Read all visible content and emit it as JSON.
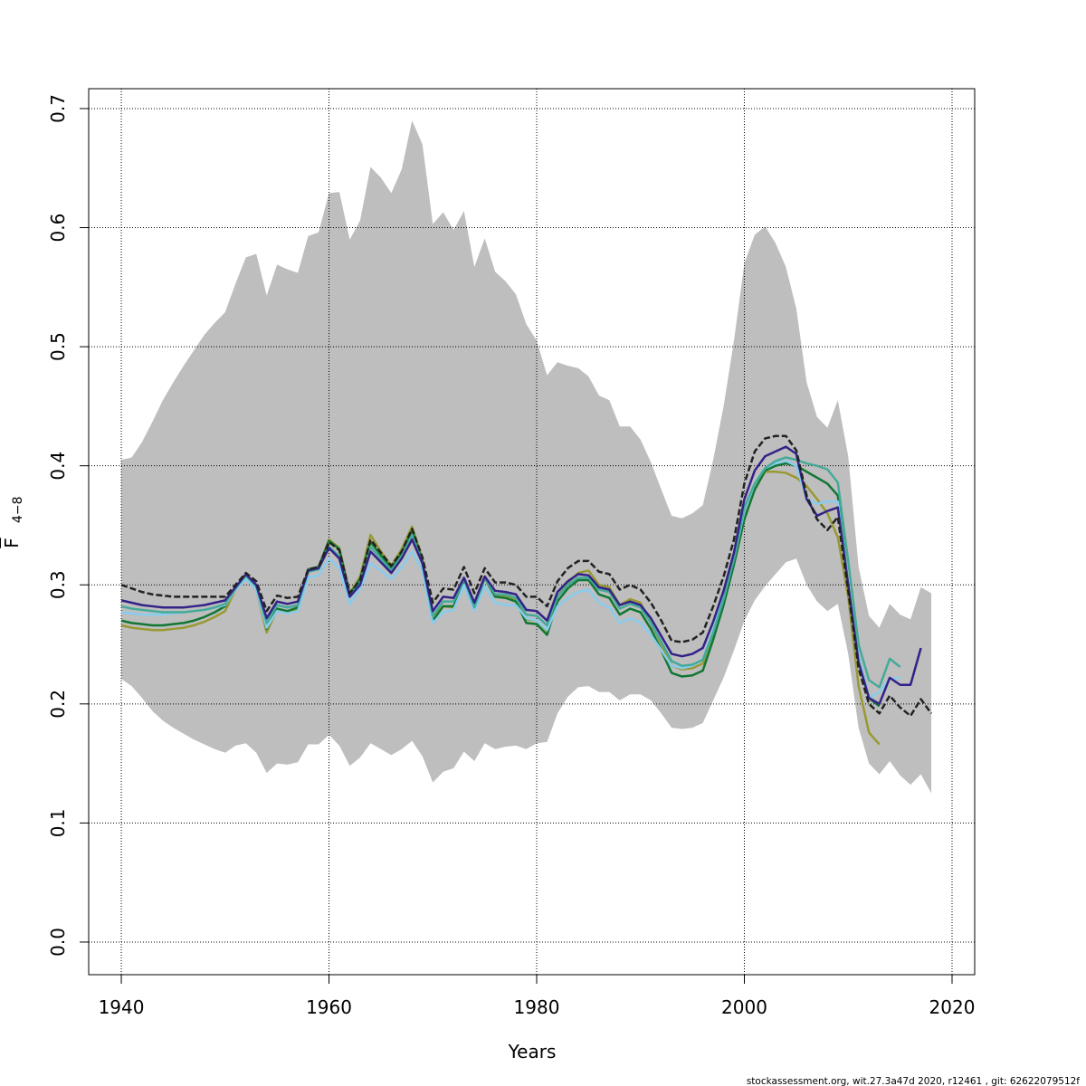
{
  "chart_data": {
    "type": "line",
    "xlabel": "Years",
    "ylabel": "F",
    "ylabel_sub": "4−8",
    "footer": "stockassessment.org, wit.27.3a47d   2020, r12461 , git: 62622079512f",
    "grid": true,
    "xlim": [
      1936.86,
      2022.18
    ],
    "ylim": [
      -0.0274,
      0.7167
    ],
    "xticks": [
      1940,
      1960,
      1980,
      2000,
      2020
    ],
    "yticks": [
      {
        "value": 0,
        "label": "0.0"
      },
      0.1,
      0.2,
      0.3,
      0.4,
      0.5,
      0.6,
      0.7
    ],
    "x": [
      1940,
      1941,
      1942,
      1943,
      1944,
      1945,
      1946,
      1947,
      1948,
      1949,
      1950,
      1951,
      1952,
      1953,
      1954,
      1955,
      1956,
      1957,
      1958,
      1959,
      1960,
      1961,
      1962,
      1963,
      1964,
      1965,
      1966,
      1967,
      1968,
      1969,
      1970,
      1971,
      1972,
      1973,
      1974,
      1975,
      1976,
      1977,
      1978,
      1979,
      1980,
      1981,
      1982,
      1983,
      1984,
      1985,
      1986,
      1987,
      1988,
      1989,
      1990,
      1991,
      1992,
      1993,
      1994,
      1995,
      1996,
      1997,
      1998,
      1999,
      2000,
      2001,
      2002,
      2003,
      2004,
      2005,
      2006,
      2007,
      2008,
      2009,
      2010,
      2011,
      2012,
      2013,
      2014,
      2015,
      2016,
      2017,
      2018
    ],
    "band": {
      "color": "#bebebe",
      "upper": [
        0.405,
        0.407,
        0.42,
        0.437,
        0.455,
        0.47,
        0.484,
        0.497,
        0.51,
        0.52,
        0.529,
        0.553,
        0.575,
        0.578,
        0.543,
        0.569,
        0.565,
        0.562,
        0.593,
        0.596,
        0.629,
        0.63,
        0.59,
        0.606,
        0.651,
        0.642,
        0.629,
        0.649,
        0.69,
        0.67,
        0.603,
        0.613,
        0.598,
        0.614,
        0.567,
        0.591,
        0.563,
        0.555,
        0.544,
        0.519,
        0.505,
        0.476,
        0.487,
        0.484,
        0.482,
        0.475,
        0.459,
        0.455,
        0.433,
        0.433,
        0.422,
        0.403,
        0.38,
        0.358,
        0.356,
        0.36,
        0.367,
        0.405,
        0.45,
        0.505,
        0.57,
        0.594,
        0.601,
        0.587,
        0.567,
        0.532,
        0.47,
        0.441,
        0.432,
        0.455,
        0.408,
        0.315,
        0.274,
        0.264,
        0.284,
        0.275,
        0.271,
        0.298,
        0.293
      ],
      "lower": [
        0.221,
        0.215,
        0.205,
        0.194,
        0.186,
        0.18,
        0.175,
        0.17,
        0.166,
        0.162,
        0.159,
        0.165,
        0.167,
        0.159,
        0.142,
        0.15,
        0.149,
        0.151,
        0.166,
        0.166,
        0.174,
        0.165,
        0.148,
        0.155,
        0.167,
        0.162,
        0.157,
        0.162,
        0.169,
        0.156,
        0.134,
        0.143,
        0.146,
        0.16,
        0.152,
        0.167,
        0.162,
        0.164,
        0.165,
        0.162,
        0.167,
        0.168,
        0.192,
        0.206,
        0.214,
        0.215,
        0.21,
        0.21,
        0.203,
        0.208,
        0.208,
        0.203,
        0.192,
        0.18,
        0.179,
        0.18,
        0.184,
        0.203,
        0.222,
        0.245,
        0.27,
        0.287,
        0.299,
        0.309,
        0.319,
        0.322,
        0.3,
        0.286,
        0.278,
        0.284,
        0.242,
        0.18,
        0.15,
        0.141,
        0.152,
        0.14,
        0.132,
        0.141,
        0.125
      ]
    },
    "series": [
      {
        "color": "#999933",
        "linestyle": "solid",
        "values": [
          0.266,
          0.264,
          0.263,
          0.262,
          0.262,
          0.263,
          0.264,
          0.266,
          0.269,
          0.273,
          0.278,
          0.296,
          0.306,
          0.296,
          0.26,
          0.279,
          0.277,
          0.279,
          0.313,
          0.315,
          0.338,
          0.331,
          0.293,
          0.307,
          0.342,
          0.328,
          0.316,
          0.33,
          0.349,
          0.322,
          0.274,
          0.282,
          0.281,
          0.305,
          0.279,
          0.307,
          0.291,
          0.29,
          0.288,
          0.271,
          0.27,
          0.261,
          0.29,
          0.302,
          0.31,
          0.312,
          0.3,
          0.298,
          0.283,
          0.288,
          0.285,
          0.268,
          0.25,
          0.232,
          0.229,
          0.23,
          0.234,
          0.26,
          0.288,
          0.32,
          0.358,
          0.38,
          0.395,
          0.395,
          0.394,
          0.39,
          0.383,
          0.372,
          0.36,
          0.34,
          0.29,
          0.215,
          0.176,
          0.166,
          null,
          null,
          null,
          null,
          null
        ]
      },
      {
        "color": "#117733",
        "linestyle": "solid",
        "values": [
          0.27,
          0.268,
          0.267,
          0.266,
          0.266,
          0.267,
          0.268,
          0.27,
          0.273,
          0.277,
          0.282,
          0.298,
          0.308,
          0.299,
          0.263,
          0.28,
          0.278,
          0.281,
          0.313,
          0.315,
          0.337,
          0.33,
          0.292,
          0.305,
          0.336,
          0.325,
          0.314,
          0.327,
          0.346,
          0.32,
          0.27,
          0.282,
          0.282,
          0.304,
          0.279,
          0.306,
          0.29,
          0.289,
          0.286,
          0.268,
          0.267,
          0.258,
          0.286,
          0.297,
          0.304,
          0.304,
          0.292,
          0.289,
          0.275,
          0.28,
          0.277,
          0.263,
          0.245,
          0.226,
          0.223,
          0.224,
          0.228,
          0.254,
          0.283,
          0.317,
          0.355,
          0.38,
          0.396,
          0.4,
          0.402,
          0.4,
          0.395,
          0.39,
          0.385,
          0.375,
          0.3,
          0.24,
          0.205,
          0.198,
          null,
          null,
          null,
          null,
          null
        ]
      },
      {
        "color": "#88ccee",
        "linestyle": "solid",
        "values": [
          0.277,
          0.276,
          0.275,
          0.275,
          0.275,
          0.276,
          0.277,
          0.278,
          0.279,
          0.281,
          0.283,
          0.296,
          0.305,
          0.296,
          0.264,
          0.278,
          0.276,
          0.278,
          0.306,
          0.308,
          0.322,
          0.314,
          0.284,
          0.297,
          0.318,
          0.312,
          0.305,
          0.315,
          0.328,
          0.312,
          0.268,
          0.277,
          0.279,
          0.3,
          0.278,
          0.299,
          0.285,
          0.283,
          0.283,
          0.272,
          0.27,
          0.262,
          0.282,
          0.289,
          0.294,
          0.296,
          0.285,
          0.281,
          0.268,
          0.272,
          0.268,
          0.258,
          0.245,
          0.232,
          0.23,
          0.232,
          0.238,
          0.262,
          0.29,
          0.322,
          0.362,
          0.385,
          0.398,
          0.402,
          0.404,
          0.4,
          0.372,
          0.368,
          0.37,
          0.37,
          0.3,
          0.24,
          0.205,
          0.21,
          0.221,
          0.222,
          null,
          null,
          null
        ]
      },
      {
        "color": "#44aa99",
        "linestyle": "solid",
        "values": [
          0.282,
          0.28,
          0.279,
          0.278,
          0.277,
          0.277,
          0.277,
          0.278,
          0.279,
          0.281,
          0.284,
          0.297,
          0.308,
          0.299,
          0.268,
          0.283,
          0.281,
          0.283,
          0.311,
          0.313,
          0.332,
          0.324,
          0.29,
          0.302,
          0.332,
          0.322,
          0.312,
          0.324,
          0.342,
          0.318,
          0.274,
          0.286,
          0.286,
          0.305,
          0.281,
          0.306,
          0.292,
          0.292,
          0.289,
          0.275,
          0.274,
          0.266,
          0.29,
          0.3,
          0.306,
          0.306,
          0.296,
          0.294,
          0.28,
          0.284,
          0.281,
          0.268,
          0.252,
          0.236,
          0.232,
          0.233,
          0.237,
          0.26,
          0.288,
          0.322,
          0.365,
          0.385,
          0.398,
          0.404,
          0.407,
          0.405,
          0.402,
          0.4,
          0.397,
          0.386,
          0.32,
          0.25,
          0.22,
          0.214,
          0.238,
          0.231,
          null,
          null,
          null
        ]
      },
      {
        "color": "#332288",
        "linestyle": "solid",
        "values": [
          0.287,
          0.285,
          0.283,
          0.282,
          0.281,
          0.281,
          0.281,
          0.282,
          0.283,
          0.285,
          0.287,
          0.298,
          0.309,
          0.3,
          0.272,
          0.286,
          0.284,
          0.286,
          0.312,
          0.314,
          0.331,
          0.322,
          0.29,
          0.3,
          0.328,
          0.319,
          0.31,
          0.322,
          0.338,
          0.318,
          0.278,
          0.29,
          0.289,
          0.306,
          0.285,
          0.307,
          0.295,
          0.294,
          0.292,
          0.279,
          0.278,
          0.27,
          0.294,
          0.303,
          0.309,
          0.308,
          0.298,
          0.296,
          0.283,
          0.286,
          0.283,
          0.272,
          0.257,
          0.242,
          0.24,
          0.242,
          0.247,
          0.269,
          0.295,
          0.327,
          0.372,
          0.396,
          0.408,
          0.412,
          0.416,
          0.41,
          0.372,
          0.358,
          0.362,
          0.365,
          0.3,
          0.235,
          0.205,
          0.2,
          0.222,
          0.216,
          0.216,
          0.247,
          null
        ]
      },
      {
        "color": "#222222",
        "linestyle": "dashed",
        "values": [
          0.3,
          0.297,
          0.294,
          0.292,
          0.291,
          0.29,
          0.29,
          0.29,
          0.29,
          0.29,
          0.29,
          0.3,
          0.31,
          0.303,
          0.278,
          0.291,
          0.289,
          0.29,
          0.313,
          0.315,
          0.336,
          0.329,
          0.293,
          0.304,
          0.338,
          0.327,
          0.316,
          0.328,
          0.347,
          0.323,
          0.285,
          0.297,
          0.296,
          0.315,
          0.293,
          0.314,
          0.302,
          0.302,
          0.3,
          0.29,
          0.29,
          0.282,
          0.303,
          0.314,
          0.32,
          0.32,
          0.311,
          0.309,
          0.296,
          0.3,
          0.296,
          0.285,
          0.27,
          0.253,
          0.252,
          0.254,
          0.26,
          0.282,
          0.307,
          0.338,
          0.385,
          0.412,
          0.423,
          0.425,
          0.425,
          0.413,
          0.375,
          0.355,
          0.346,
          0.357,
          0.295,
          0.23,
          0.2,
          0.192,
          0.207,
          0.197,
          0.19,
          0.204,
          0.192
        ]
      }
    ]
  }
}
